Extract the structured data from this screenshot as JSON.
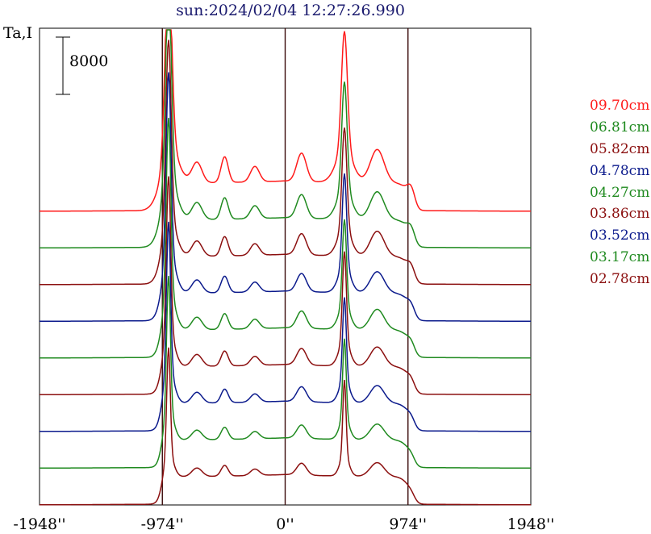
{
  "header": {
    "title": "sun:2024/02/04 12:27:26.990"
  },
  "chart_data": {
    "type": "line",
    "title": "sun:2024/02/04 12:27:26.990",
    "ylabel": "Ta,I",
    "scale_bar_label": "8000",
    "x_ticks": [
      "-1948''",
      "-974''",
      "0''",
      "974''",
      "1948''"
    ],
    "xlim": [
      -1948,
      1948
    ],
    "vlines": [
      -974,
      0,
      974
    ],
    "grid": false,
    "legend_position": "right",
    "series": [
      {
        "name": "09.70cm",
        "color": "#ff1a1a",
        "peak1": 25000,
        "peak2": 16500,
        "bump": 3600,
        "width_scale": 1.3
      },
      {
        "name": "06.81cm",
        "color": "#1f8a1f",
        "peak1": 27000,
        "peak2": 15000,
        "bump": 3000,
        "width_scale": 1.15
      },
      {
        "name": "05.82cm",
        "color": "#8b0f0f",
        "peak1": 25000,
        "peak2": 14000,
        "bump": 2700,
        "width_scale": 1.05
      },
      {
        "name": "04.78cm",
        "color": "#0b1a8c",
        "peak1": 25500,
        "peak2": 13000,
        "bump": 2300,
        "width_scale": 0.95
      },
      {
        "name": "04.27cm",
        "color": "#1f8a1f",
        "peak1": 24500,
        "peak2": 12000,
        "bump": 2200,
        "width_scale": 0.9
      },
      {
        "name": "03.86cm",
        "color": "#8b0f0f",
        "peak1": 22000,
        "peak2": 12500,
        "bump": 2100,
        "width_scale": 0.85
      },
      {
        "name": "03.52cm",
        "color": "#0b1a8c",
        "peak1": 21000,
        "peak2": 11500,
        "bump": 1900,
        "width_scale": 0.8
      },
      {
        "name": "03.17cm",
        "color": "#1f8a1f",
        "peak1": 19000,
        "peak2": 11000,
        "bump": 1700,
        "width_scale": 0.75
      },
      {
        "name": "02.78cm",
        "color": "#8b0f0f",
        "peak1": 15000,
        "peak2": 10500,
        "bump": 1500,
        "width_scale": 0.7
      }
    ]
  }
}
